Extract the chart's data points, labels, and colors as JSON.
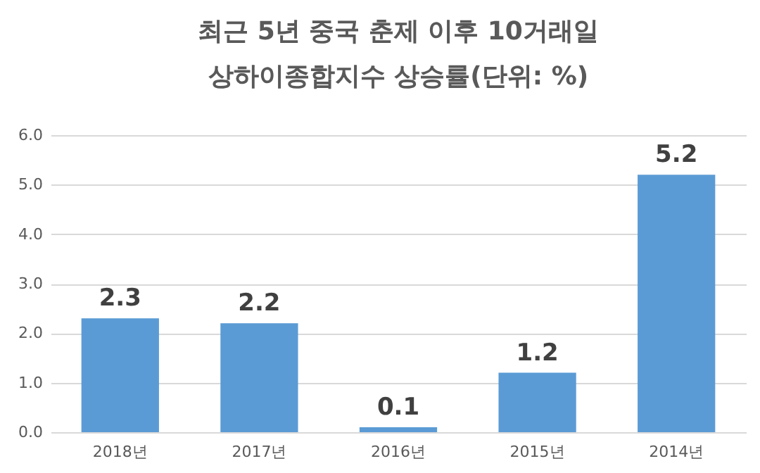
{
  "chart_data": {
    "type": "bar",
    "title": "최근 5년 중국 춘제 이후 10거래일",
    "subtitle": "상하이종합지수 상승률(단위: %)",
    "categories": [
      "2018년",
      "2017년",
      "2016년",
      "2015년",
      "2014년"
    ],
    "values": [
      2.3,
      2.2,
      0.1,
      1.2,
      5.2
    ],
    "color": "#5b9bd5",
    "ylim": [
      0,
      6
    ],
    "yticks": [
      {
        "value": 0,
        "label": "0.0"
      },
      {
        "value": 1,
        "label": "1.0"
      },
      {
        "value": 2,
        "label": "2.0"
      },
      {
        "value": 3,
        "label": "3.0"
      },
      {
        "value": 4,
        "label": "4.0"
      },
      {
        "value": 5,
        "label": "5.0"
      },
      {
        "value": 6,
        "label": "6.0"
      }
    ],
    "grid": "y",
    "data_labels": true
  }
}
